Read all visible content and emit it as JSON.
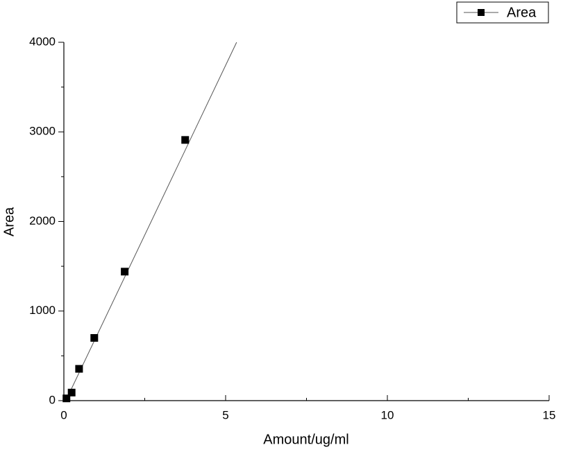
{
  "chart_data": {
    "type": "scatter",
    "x_label": "Amount/ug/ml",
    "y_label": "Area",
    "series": [
      {
        "name": "Area",
        "color": "#000000",
        "x": [
          0.08,
          0.24,
          0.47,
          0.94,
          1.88,
          3.75
        ],
        "values": [
          25,
          90,
          355,
          700,
          1440,
          2910
        ]
      }
    ],
    "fit_line": {
      "x": [
        0.06,
        5.34
      ],
      "y": [
        0,
        4000
      ],
      "color": "#555555"
    },
    "xlim": [
      0,
      15
    ],
    "xticks": [
      0,
      5,
      10,
      15
    ],
    "xminor_ticks": [
      2.5,
      7.5,
      12.5
    ],
    "ylim": [
      0,
      4000
    ],
    "yticks": [
      0,
      1000,
      2000,
      3000,
      4000
    ],
    "yminor_ticks": [
      500,
      1500,
      2500,
      3500
    ],
    "legend": "top-right",
    "grid": false
  }
}
